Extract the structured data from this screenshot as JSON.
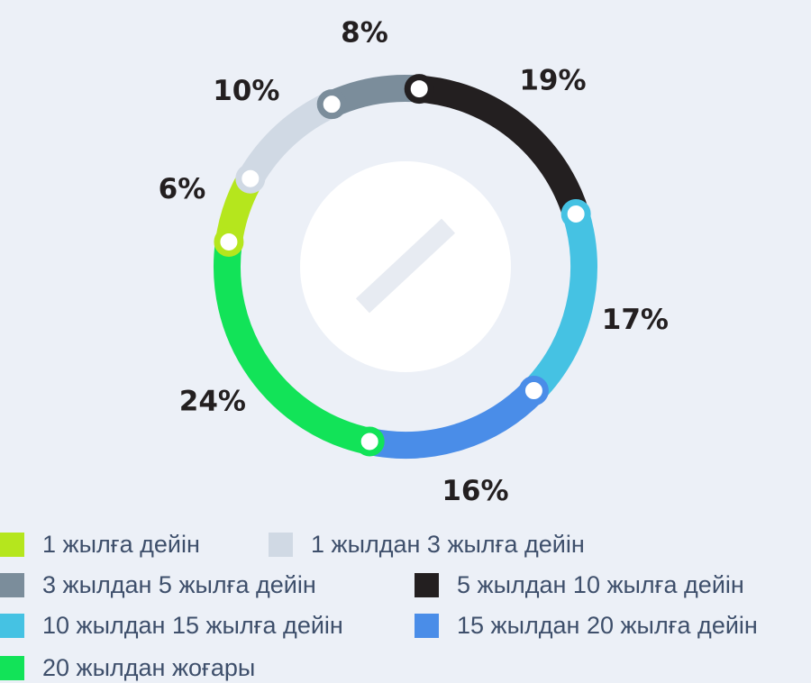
{
  "chart_data": {
    "type": "pie",
    "style": "ring",
    "title": "",
    "slices": [
      {
        "label": "1 жылға дейін",
        "value": 6,
        "display": "6%",
        "color": "#b5e61d"
      },
      {
        "label": "1 жылдан 3 жылға дейін",
        "value": 10,
        "display": "10%",
        "color": "#d0d9e4"
      },
      {
        "label": "3 жылдан 5 жылға дейін",
        "value": 8,
        "display": "8%",
        "color": "#7b8d9b"
      },
      {
        "label": "5 жылдан 10 жылға дейін",
        "value": 19,
        "display": "19%",
        "color": "#231f20"
      },
      {
        "label": "10 жылдан 15 жылға дейін",
        "value": 17,
        "display": "17%",
        "color": "#45c2e3"
      },
      {
        "label": "15 жылдан 20 жылға дейін",
        "value": 16,
        "display": "16%",
        "color": "#4a8de8"
      },
      {
        "label": "20 жылдан жоғары",
        "value": 24,
        "display": "24%",
        "color": "#12e358"
      }
    ],
    "legend_position": "bottom"
  }
}
